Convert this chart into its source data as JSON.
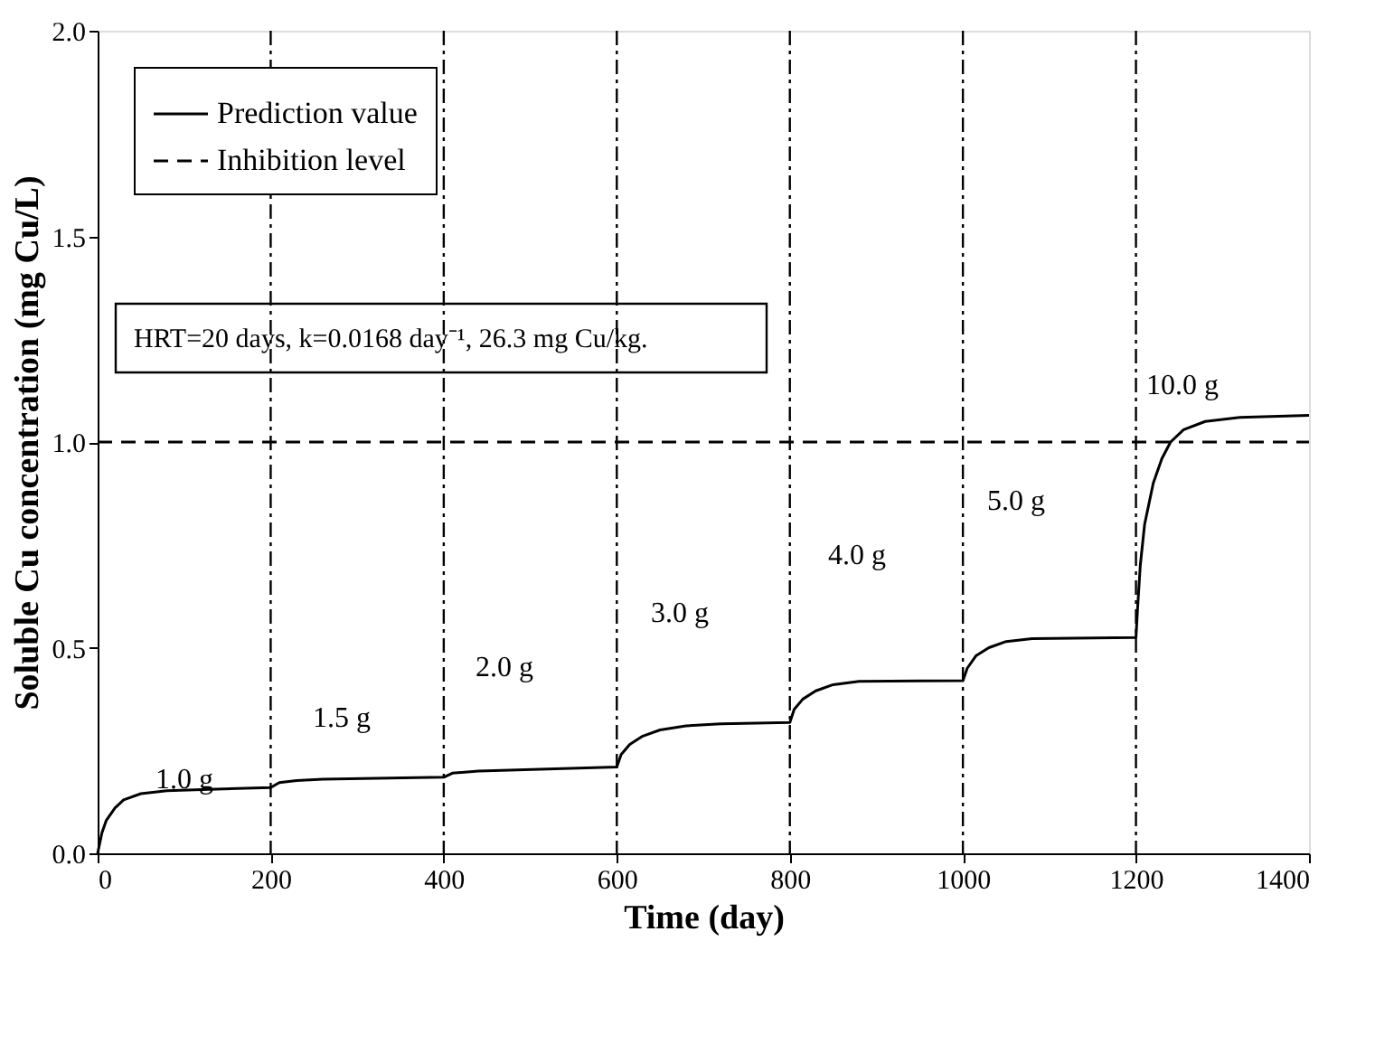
{
  "chart_data": {
    "type": "line",
    "xlabel": "Time (day)",
    "ylabel": "Soluble Cu concentration (mg Cu/L)",
    "xlim": [
      0,
      1400
    ],
    "xticks": [
      0,
      200,
      400,
      600,
      800,
      {
        "value": 1000,
        "label": "1000"
      },
      {
        "value": 1200,
        "label": "1200"
      },
      {
        "value": 1400,
        "label": "1400"
      }
    ],
    "ylim": [
      0,
      2.0
    ],
    "yticks": [
      {
        "value": 0,
        "label": "0.0"
      },
      {
        "value": 0.5,
        "label": "0.5"
      },
      {
        "value": 1,
        "label": "1.0"
      },
      {
        "value": 1.5,
        "label": "1.5"
      },
      {
        "value": 2,
        "label": "2.0"
      }
    ],
    "grid": false,
    "legend": "top left",
    "marker": "none",
    "series": [
      {
        "name": "Prediction value",
        "color": "#000000",
        "line_style": "solid",
        "x": [
          0,
          5,
          10,
          20,
          30,
          50,
          80,
          120,
          200,
          210,
          230,
          260,
          400,
          410,
          440,
          600,
          605,
          615,
          630,
          650,
          680,
          720,
          800,
          805,
          815,
          830,
          850,
          880,
          1000,
          1005,
          1015,
          1030,
          1050,
          1080,
          1200,
          1202,
          1205,
          1210,
          1220,
          1230,
          1240,
          1255,
          1280,
          1320,
          1400
        ],
        "values": [
          0,
          0.05,
          0.08,
          0.11,
          0.13,
          0.145,
          0.152,
          0.155,
          0.16,
          0.172,
          0.177,
          0.18,
          0.185,
          0.195,
          0.2,
          0.21,
          0.24,
          0.265,
          0.285,
          0.3,
          0.31,
          0.315,
          0.318,
          0.35,
          0.375,
          0.395,
          0.41,
          0.418,
          0.42,
          0.45,
          0.48,
          0.5,
          0.515,
          0.522,
          0.525,
          0.6,
          0.7,
          0.8,
          0.9,
          0.96,
          1.0,
          1.03,
          1.05,
          1.06,
          1.065
        ]
      },
      {
        "name": "Inhibition level",
        "color": "#000000",
        "line_style": "dashed",
        "x": [
          0,
          1400
        ],
        "values": [
          1.0,
          1.0
        ]
      }
    ],
    "ref_lines": [
      {
        "axis": "x",
        "value": 200,
        "color": "#000000",
        "line_style": "dashdot"
      },
      {
        "axis": "x",
        "value": 400,
        "color": "#000000",
        "line_style": "dashdot"
      },
      {
        "axis": "x",
        "value": 600,
        "color": "#000000",
        "line_style": "dashdot"
      },
      {
        "axis": "x",
        "value": 800,
        "color": "#000000",
        "line_style": "dashdot"
      },
      {
        "axis": "x",
        "value": 1000,
        "color": "#000000",
        "line_style": "dashdot"
      },
      {
        "axis": "x",
        "value": 1200,
        "color": "#000000",
        "line_style": "dashdot"
      }
    ],
    "annotations": [
      "HRT=20 days, k=0.0168 day⁻¹, 26.3 mg Cu/kg.",
      "1.0 g",
      "1.5 g",
      "2.0 g",
      "3.0 g",
      "4.0 g",
      "5.0 g",
      "10.0 g"
    ]
  }
}
